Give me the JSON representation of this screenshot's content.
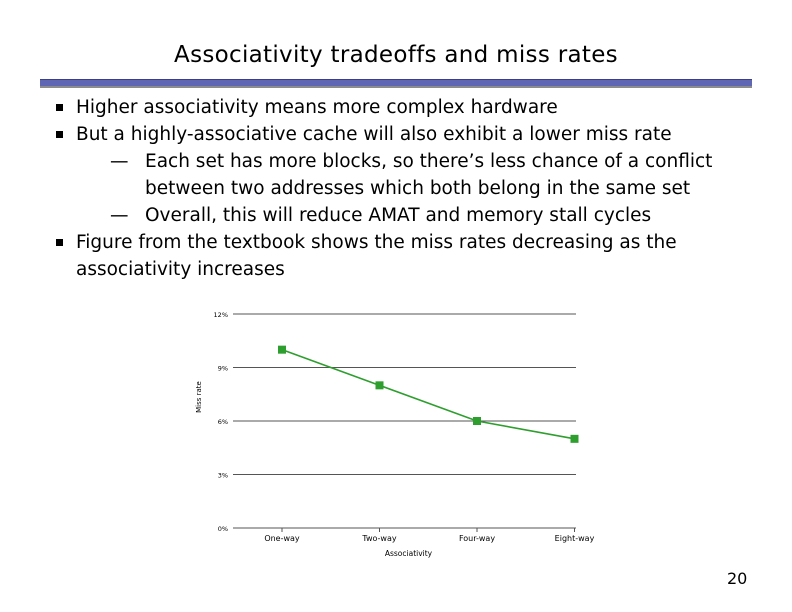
{
  "slide": {
    "title": "Associativity tradeoffs and miss rates",
    "page_number": "20"
  },
  "bullets": [
    {
      "text": "Higher associativity means more complex hardware",
      "sub": []
    },
    {
      "text": "But a highly-associative cache will also exhibit a lower miss rate",
      "sub": [
        "Each set has more blocks, so there’s less chance of a conflict between two addresses which both belong in the same set",
        "Overall, this will reduce AMAT and memory stall cycles"
      ]
    },
    {
      "text": "Figure from the textbook shows the miss rates decreasing as the associativity increases",
      "sub": []
    }
  ],
  "chart_data": {
    "type": "line",
    "categories": [
      "One-way",
      "Two-way",
      "Four-way",
      "Eight-way"
    ],
    "series": [
      {
        "values": [
          10.0,
          8.0,
          6.0,
          5.0
        ],
        "color": "#2e9e2e"
      }
    ],
    "yticks": [
      "0%",
      "3%",
      "6%",
      "9%",
      "12%"
    ],
    "ylim": [
      0,
      12
    ],
    "xlabel": "Associativity",
    "ylabel": "Miss rate",
    "grid": true
  }
}
